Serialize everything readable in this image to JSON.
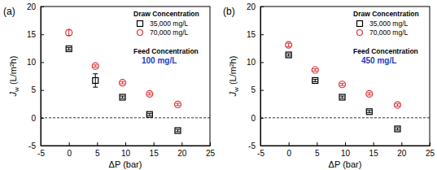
{
  "chart_data": [
    {
      "type": "scatter",
      "title": "(a)",
      "xlabel": "ΔP (bar)",
      "ylabel": "Jw (L/m²h)",
      "xlim": [
        -5,
        25
      ],
      "xticks": [
        -5,
        0,
        5,
        10,
        15,
        20,
        25
      ],
      "ylim": [
        -5,
        20
      ],
      "yticks": [
        -5,
        0,
        5,
        10,
        15,
        20
      ],
      "hlines": [
        0
      ],
      "legend": "upper right",
      "legend_title": "Draw Concentration",
      "annotations": [
        {
          "text": "Feed Concentration"
        },
        {
          "text": "100 mg/L",
          "color": "#1f3fbf"
        }
      ],
      "series": [
        {
          "name": "35,000 mg/L",
          "color": "#000000",
          "marker": "square",
          "x": [
            0,
            4.7,
            9.5,
            14.3,
            19.3
          ],
          "values": [
            12.4,
            6.7,
            3.7,
            0.6,
            -2.3
          ],
          "errors": [
            0.2,
            1.2,
            0.2,
            0.2,
            0.2
          ]
        },
        {
          "name": "70,000 mg/L",
          "color": "#e03030",
          "marker": "circle",
          "x": [
            0,
            4.7,
            9.5,
            14.3,
            19.3
          ],
          "values": [
            15.3,
            9.3,
            6.3,
            4.3,
            2.4
          ],
          "errors": [
            0.5,
            0.2,
            0.2,
            0.2,
            0.2
          ]
        }
      ]
    },
    {
      "type": "scatter",
      "title": "(b)",
      "xlabel": "ΔP (bar)",
      "ylabel": "Jw (L/m²h)",
      "xlim": [
        -5,
        25
      ],
      "xticks": [
        -5,
        0,
        5,
        10,
        15,
        20,
        25
      ],
      "ylim": [
        -5,
        20
      ],
      "yticks": [
        -5,
        0,
        5,
        10,
        15,
        20
      ],
      "hlines": [
        0
      ],
      "legend": "upper right",
      "legend_title": "Draw Concentration",
      "annotations": [
        {
          "text": "Feed Concentration"
        },
        {
          "text": "450 mg/L",
          "color": "#1f3fbf"
        }
      ],
      "series": [
        {
          "name": "35,000 mg/L",
          "color": "#000000",
          "marker": "square",
          "x": [
            0,
            4.7,
            9.5,
            14.3,
            19.3
          ],
          "values": [
            11.3,
            6.7,
            3.7,
            1.1,
            -2.0
          ],
          "errors": [
            0.2,
            0.2,
            0.2,
            0.2,
            0.2
          ]
        },
        {
          "name": "70,000 mg/L",
          "color": "#e03030",
          "marker": "circle",
          "x": [
            0,
            4.7,
            9.5,
            14.3,
            19.3
          ],
          "values": [
            13.1,
            8.6,
            6.0,
            4.3,
            2.3
          ],
          "errors": [
            0.3,
            0.2,
            0.2,
            0.2,
            0.2
          ]
        }
      ]
    }
  ]
}
